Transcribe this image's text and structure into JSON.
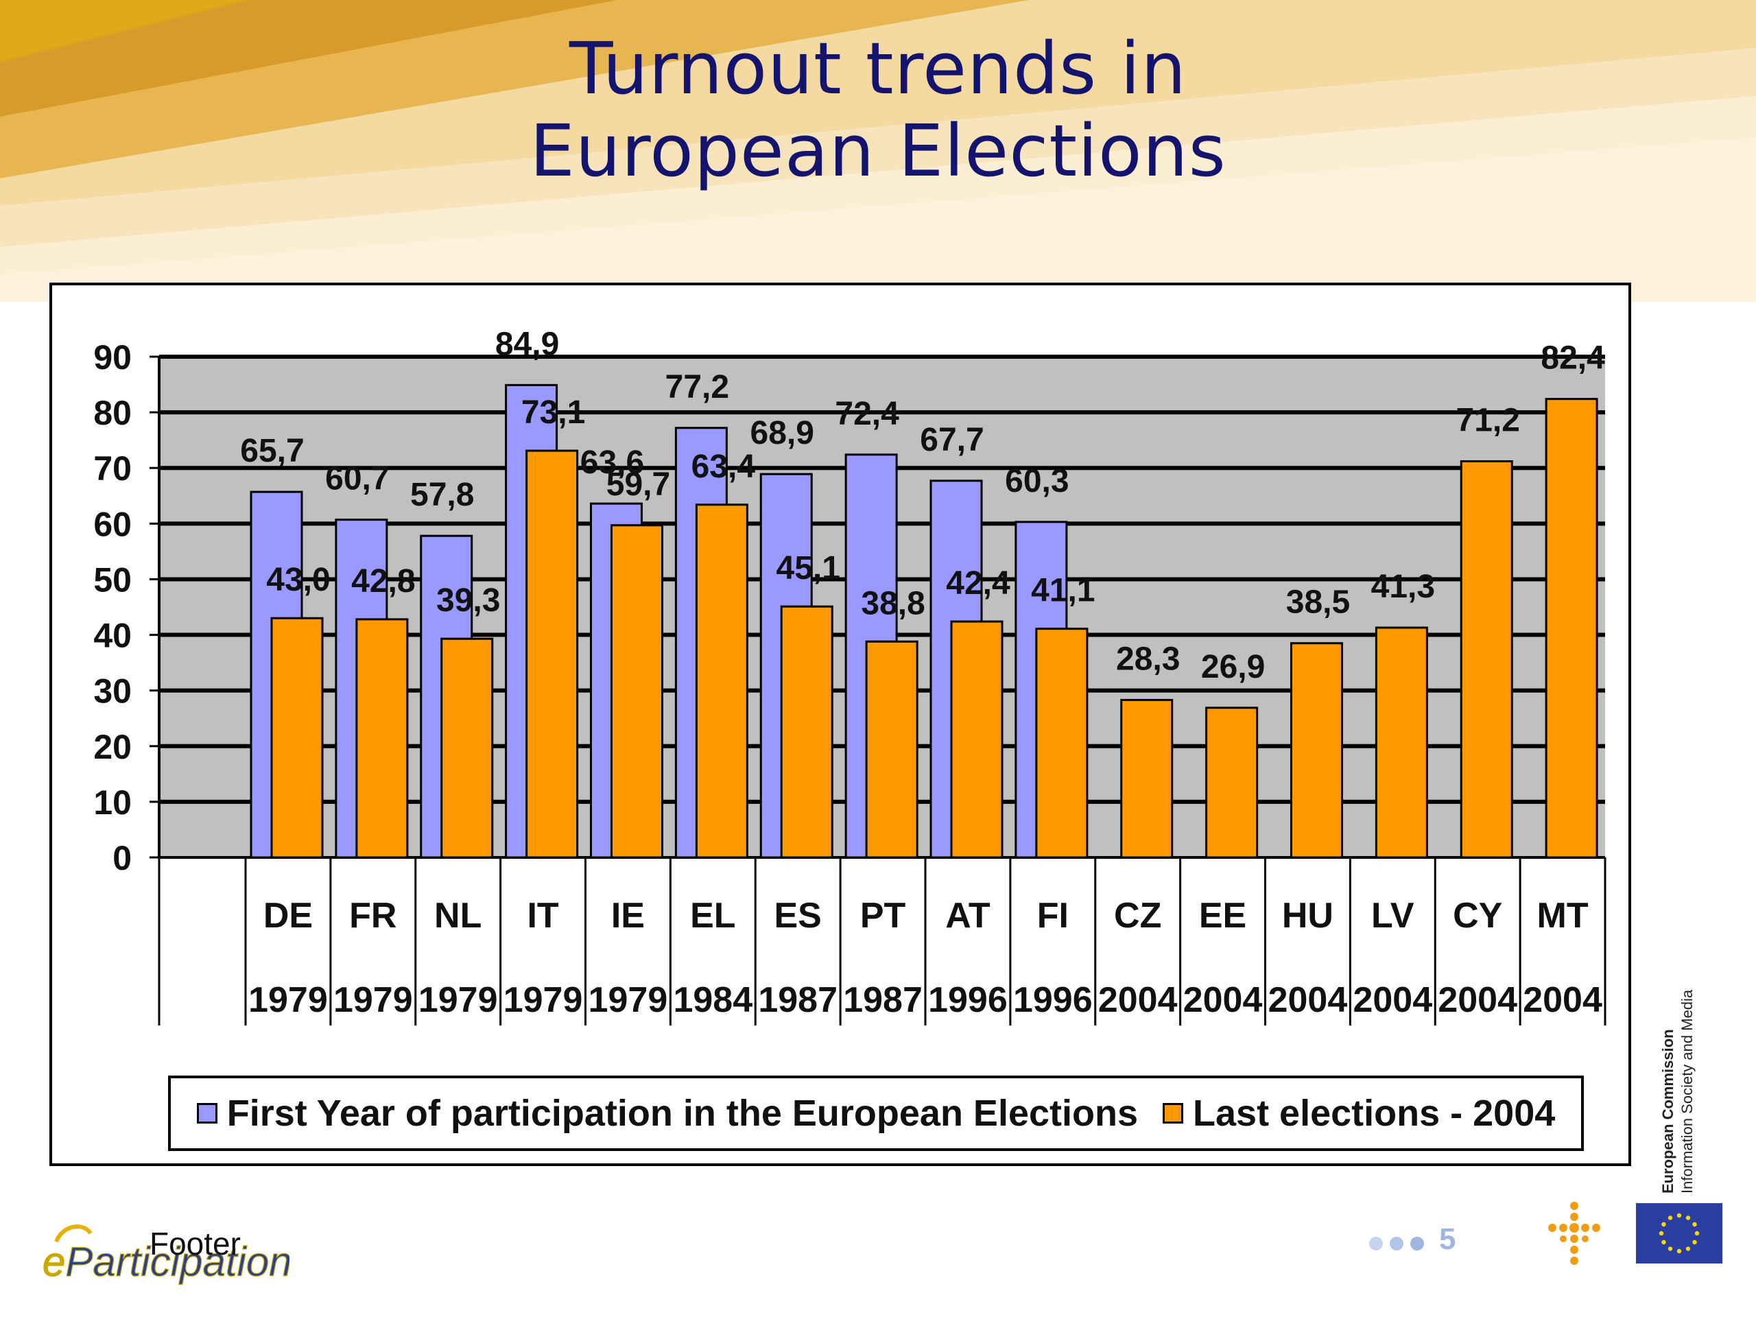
{
  "slide": {
    "title_line1": "Turnout trends in",
    "title_line2": "European Elections",
    "footer_text": "Footer",
    "footer_logo": "eParticipation",
    "page_number": "5",
    "ec_line1": "European Commission",
    "ec_line2": "Information Society and Media"
  },
  "colors": {
    "first_year": "#9999ff",
    "last_2004": "#ff9900",
    "plot_bg": "#c0c0c0",
    "title": "#14146e"
  },
  "chart_data": {
    "type": "bar",
    "categories": [
      "DE",
      "FR",
      "NL",
      "IT",
      "IE",
      "EL",
      "ES",
      "PT",
      "AT",
      "FI",
      "CZ",
      "EE",
      "HU",
      "LV",
      "CY",
      "MT"
    ],
    "years": [
      "1979",
      "1979",
      "1979",
      "1979",
      "1979",
      "1984",
      "1987",
      "1987",
      "1996",
      "1996",
      "2004",
      "2004",
      "2004",
      "2004",
      "2004",
      "2004"
    ],
    "series": [
      {
        "name": "First Year of participation in the European Elections",
        "values": [
          65.7,
          60.7,
          57.8,
          84.9,
          63.6,
          77.2,
          68.9,
          72.4,
          67.7,
          60.3,
          null,
          null,
          null,
          null,
          null,
          null
        ],
        "labels": [
          "65,7",
          "60,7",
          "57,8",
          "84,9",
          "63,6",
          "77,2",
          "68,9",
          "72,4",
          "67,7",
          "60,3",
          "",
          "",
          "",
          "",
          "",
          ""
        ]
      },
      {
        "name": "Last elections - 2004",
        "values": [
          43.0,
          42.8,
          39.3,
          73.1,
          59.7,
          63.4,
          45.1,
          38.8,
          42.4,
          41.1,
          28.3,
          26.9,
          38.5,
          41.3,
          71.2,
          82.4
        ],
        "labels": [
          "43,0",
          "42,8",
          "39,3",
          "73,1",
          "59,7",
          "63,4",
          "45,1",
          "38,8",
          "42,4",
          "41,1",
          "28,3",
          "26,9",
          "38,5",
          "41,3",
          "71,2",
          "82,4"
        ]
      }
    ],
    "yticks": [
      "0",
      "10",
      "20",
      "30",
      "40",
      "50",
      "60",
      "70",
      "80",
      "90"
    ],
    "ylim": [
      0,
      90
    ],
    "grid": true,
    "legend_position": "bottom"
  }
}
